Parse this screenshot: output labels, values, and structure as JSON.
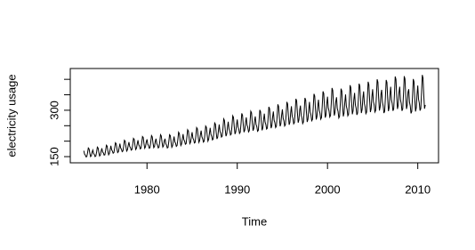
{
  "chart_data": {
    "type": "line",
    "xlabel": "Time",
    "ylabel": "electricity usage",
    "color": "#000000",
    "start": 1973,
    "frequency": 12,
    "xlim": [
      1971.5,
      2012.3
    ],
    "xticks": [
      1980,
      1990,
      2000,
      2010
    ],
    "ylim": [
      130,
      435
    ],
    "yticks": [
      150,
      {
        "value": 200,
        "label": null
      },
      {
        "value": 250,
        "label": null
      },
      300,
      {
        "value": 350,
        "label": null
      },
      {
        "value": 400,
        "label": null
      }
    ],
    "values": [
      169,
      158,
      155,
      149,
      150,
      163,
      178,
      175,
      161,
      150,
      153,
      164,
      171,
      160,
      157,
      150,
      152,
      165,
      181,
      178,
      163,
      152,
      155,
      167,
      177,
      165,
      162,
      155,
      156,
      170,
      187,
      184,
      168,
      156,
      160,
      172,
      185,
      172,
      168,
      161,
      163,
      178,
      195,
      192,
      176,
      163,
      166,
      179,
      192,
      178,
      174,
      166,
      168,
      184,
      203,
      200,
      182,
      168,
      172,
      186,
      197,
      183,
      179,
      171,
      173,
      189,
      209,
      206,
      187,
      173,
      177,
      191,
      203,
      188,
      184,
      175,
      177,
      194,
      215,
      212,
      192,
      177,
      182,
      197,
      206,
      190,
      186,
      177,
      179,
      197,
      218,
      214,
      194,
      179,
      183,
      199,
      208,
      192,
      187,
      178,
      181,
      199,
      221,
      217,
      197,
      181,
      185,
      201,
      208,
      192,
      187,
      178,
      180,
      199,
      221,
      218,
      197,
      180,
      185,
      201,
      215,
      198,
      193,
      183,
      186,
      205,
      229,
      225,
      203,
      186,
      191,
      208,
      223,
      205,
      200,
      190,
      192,
      213,
      237,
      233,
      210,
      192,
      197,
      215,
      229,
      210,
      205,
      194,
      196,
      218,
      244,
      240,
      215,
      196,
      202,
      221,
      234,
      214,
      208,
      197,
      200,
      222,
      249,
      245,
      220,
      200,
      206,
      225,
      243,
      222,
      216,
      204,
      207,
      231,
      259,
      255,
      228,
      207,
      213,
      234,
      254,
      232,
      226,
      213,
      216,
      241,
      272,
      267,
      238,
      216,
      223,
      245,
      263,
      240,
      233,
      220,
      223,
      250,
      282,
      277,
      247,
      223,
      230,
      253,
      270,
      246,
      239,
      225,
      229,
      256,
      290,
      284,
      253,
      229,
      236,
      260,
      277,
      252,
      245,
      230,
      234,
      263,
      297,
      292,
      259,
      234,
      241,
      266,
      280,
      254,
      247,
      232,
      235,
      265,
      301,
      295,
      261,
      235,
      243,
      269,
      289,
      262,
      254,
      239,
      242,
      274,
      311,
      305,
      270,
      242,
      250,
      278,
      296,
      268,
      260,
      244,
      248,
      280,
      319,
      312,
      276,
      248,
      256,
      284,
      303,
      274,
      266,
      249,
      253,
      287,
      327,
      320,
      282,
      253,
      261,
      291,
      313,
      282,
      273,
      256,
      260,
      295,
      337,
      330,
      291,
      260,
      269,
      300,
      315,
      284,
      275,
      257,
      262,
      297,
      340,
      333,
      293,
      262,
      271,
      302,
      327,
      294,
      285,
      266,
      270,
      308,
      353,
      346,
      303,
      270,
      280,
      313,
      334,
      300,
      290,
      271,
      276,
      315,
      361,
      354,
      310,
      276,
      285,
      320,
      344,
      308,
      298,
      278,
      283,
      323,
      372,
      364,
      318,
      283,
      293,
      328,
      342,
      306,
      296,
      275,
      280,
      321,
      370,
      362,
      316,
      280,
      291,
      326,
      351,
      314,
      303,
      282,
      287,
      330,
      381,
      373,
      325,
      287,
      298,
      335,
      356,
      318,
      307,
      285,
      291,
      334,
      386,
      378,
      329,
      291,
      302,
      340,
      361,
      322,
      311,
      289,
      294,
      339,
      392,
      383,
      333,
      294,
      305,
      344,
      368,
      328,
      317,
      294,
      299,
      345,
      400,
      391,
      339,
      299,
      311,
      351,
      366,
      326,
      314,
      291,
      297,
      343,
      398,
      390,
      338,
      297,
      309,
      349,
      376,
      334,
      322,
      298,
      304,
      352,
      409,
      400,
      346,
      304,
      316,
      358,
      376,
      334,
      322,
      298,
      304,
      352,
      410,
      401,
      346,
      304,
      316,
      358,
      368,
      326,
      314,
      290,
      296,
      344,
      401,
      392,
      338,
      296,
      308,
      350,
      380,
      336,
      324,
      299,
      305,
      355,
      414,
      404,
      348,
      305,
      317
    ]
  }
}
